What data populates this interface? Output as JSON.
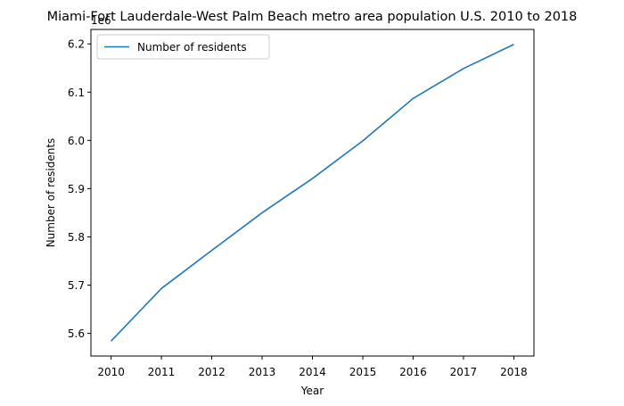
{
  "chart_data": {
    "type": "line",
    "title": "Miami-Fort Lauderdale-West Palm Beach metro area population U.S. 2010 to 2018",
    "xlabel": "Year",
    "ylabel": "Number of residents",
    "offset_text": "1e6",
    "x": [
      2010,
      2011,
      2012,
      2013,
      2014,
      2015,
      2016,
      2017,
      2018
    ],
    "x_ticks": [
      "2010",
      "2011",
      "2012",
      "2013",
      "2014",
      "2015",
      "2016",
      "2017",
      "2018"
    ],
    "series": [
      {
        "name": "Number of residents",
        "color": "#1f77b4",
        "values": [
          5584000,
          5693000,
          5772000,
          5850000,
          5921000,
          5999000,
          6087000,
          6149000,
          6199000
        ]
      }
    ],
    "y_ticks": [
      5.6,
      5.7,
      5.8,
      5.9,
      6.0,
      6.1,
      6.2
    ],
    "y_tick_labels": [
      "5.6",
      "5.7",
      "5.8",
      "5.9",
      "6.0",
      "6.1",
      "6.2"
    ],
    "ylim": [
      5553000,
      6230000
    ],
    "xlim": [
      2009.6,
      2018.4
    ],
    "legend_position": "upper-left",
    "grid": false
  }
}
